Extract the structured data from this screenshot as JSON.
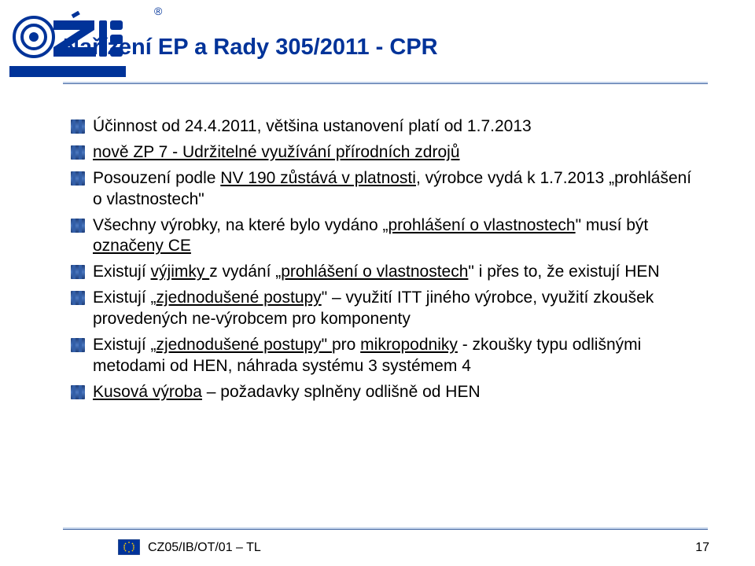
{
  "colors": {
    "brand": "#003399",
    "rule_light": "#c0d0e8",
    "rule_dark": "#5070a8",
    "text": "#000000",
    "bg": "#ffffff"
  },
  "logo": {
    "text_top": "ZÚS",
    "reg": "®",
    "bar": "#003399"
  },
  "title": "Nařízení EP a Rady 305/2011 - CPR",
  "bullets": [
    {
      "segments": [
        {
          "t": "Účinnost od 24.4.2011, většina ustanovení platí od 1.7.2013"
        }
      ]
    },
    {
      "segments": [
        {
          "t": "nově ZP 7 - Udržitelné využívání přírodních zdrojů",
          "u": true
        }
      ]
    },
    {
      "segments": [
        {
          "t": "Posouzení podle "
        },
        {
          "t": "NV 190 zůstává v platnosti",
          "u": true
        },
        {
          "t": ", výrobce vydá k 1.7.2013 „prohlášení o vlastnostech\""
        }
      ]
    },
    {
      "segments": [
        {
          "t": "Všechny výrobky, na které bylo vydáno „"
        },
        {
          "t": "prohlášení o vlastnostech",
          "u": true
        },
        {
          "t": "\" musí být "
        },
        {
          "t": "označeny CE",
          "u": true
        }
      ]
    },
    {
      "segments": [
        {
          "t": "Existují "
        },
        {
          "t": "výjimky ",
          "u": true
        },
        {
          "t": "z vydání „"
        },
        {
          "t": "prohlášení o vlastnostech",
          "u": true
        },
        {
          "t": "\" i přes to, že existují HEN"
        }
      ]
    },
    {
      "segments": [
        {
          "t": "Existují „"
        },
        {
          "t": "zjednodušené postupy",
          "u": true
        },
        {
          "t": "\" – využití ITT jiného výrobce, využití zkoušek provedených ne-výrobcem pro komponenty"
        }
      ]
    },
    {
      "segments": [
        {
          "t": "Existují „"
        },
        {
          "t": "zjednodušené postupy\" ",
          "u": true
        },
        {
          "t": "pro "
        },
        {
          "t": "mikropodniky",
          "u": true
        },
        {
          "t": " - zkoušky typu odlišnými metodami od HEN, náhrada systému 3 systémem 4"
        }
      ]
    },
    {
      "segments": [
        {
          "t": "Kusová výroba",
          "u": true
        },
        {
          "t": " – požadavky splněny odlišně od HEN"
        }
      ]
    }
  ],
  "footer": {
    "code": "CZ05/IB/OT/01 – TL",
    "page": "17"
  }
}
